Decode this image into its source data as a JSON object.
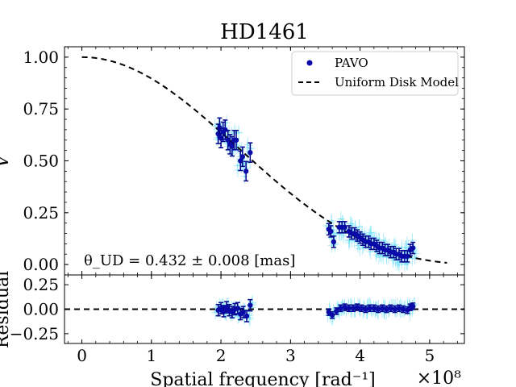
{
  "chart_data": [
    {
      "type": "scatter",
      "title": "HD1461",
      "xlabel": "",
      "ylabel": "V",
      "xlim": [
        -0.25,
        5.5
      ],
      "ylim": [
        -0.05,
        1.05
      ],
      "x_ticks": [
        "0",
        "1",
        "2",
        "3",
        "4",
        "5"
      ],
      "y_ticks": [
        "0.00",
        "0.25",
        "0.50",
        "0.75",
        "1.00"
      ],
      "grid": false,
      "legend_placement": "top-right",
      "legend": [
        "PAVO",
        "Uniform Disk Model"
      ],
      "annotation": "θ_UD = 0.432 ± 0.008 [mas]",
      "series": [
        {
          "name": "PAVO",
          "points": [
            {
              "x": 1.96,
              "y": 0.63
            },
            {
              "x": 1.98,
              "y": 0.66
            },
            {
              "x": 2.0,
              "y": 0.61
            },
            {
              "x": 2.03,
              "y": 0.64
            },
            {
              "x": 2.06,
              "y": 0.65
            },
            {
              "x": 2.1,
              "y": 0.6
            },
            {
              "x": 2.13,
              "y": 0.58
            },
            {
              "x": 2.16,
              "y": 0.57
            },
            {
              "x": 2.19,
              "y": 0.6
            },
            {
              "x": 2.22,
              "y": 0.6
            },
            {
              "x": 2.28,
              "y": 0.5
            },
            {
              "x": 2.31,
              "y": 0.52
            },
            {
              "x": 2.36,
              "y": 0.45
            },
            {
              "x": 2.42,
              "y": 0.54
            },
            {
              "x": 3.55,
              "y": 0.17
            },
            {
              "x": 3.58,
              "y": 0.16
            },
            {
              "x": 3.62,
              "y": 0.11
            },
            {
              "x": 3.7,
              "y": 0.18
            },
            {
              "x": 3.74,
              "y": 0.18
            },
            {
              "x": 3.78,
              "y": 0.18
            },
            {
              "x": 3.84,
              "y": 0.16
            },
            {
              "x": 3.88,
              "y": 0.15
            },
            {
              "x": 3.92,
              "y": 0.15
            },
            {
              "x": 3.96,
              "y": 0.14
            },
            {
              "x": 4.0,
              "y": 0.13
            },
            {
              "x": 4.04,
              "y": 0.12
            },
            {
              "x": 4.08,
              "y": 0.11
            },
            {
              "x": 4.12,
              "y": 0.11
            },
            {
              "x": 4.16,
              "y": 0.1
            },
            {
              "x": 4.2,
              "y": 0.1
            },
            {
              "x": 4.24,
              "y": 0.09
            },
            {
              "x": 4.28,
              "y": 0.08
            },
            {
              "x": 4.32,
              "y": 0.08
            },
            {
              "x": 4.36,
              "y": 0.07
            },
            {
              "x": 4.4,
              "y": 0.07
            },
            {
              "x": 4.44,
              "y": 0.06
            },
            {
              "x": 4.48,
              "y": 0.06
            },
            {
              "x": 4.52,
              "y": 0.05
            },
            {
              "x": 4.56,
              "y": 0.05
            },
            {
              "x": 4.6,
              "y": 0.04
            },
            {
              "x": 4.64,
              "y": 0.04
            },
            {
              "x": 4.68,
              "y": 0.04
            },
            {
              "x": 4.72,
              "y": 0.07
            },
            {
              "x": 4.76,
              "y": 0.08
            }
          ]
        },
        {
          "name": "Uniform Disk Model",
          "model": "uniform_disk",
          "theta_mas": 0.432,
          "x_range": [
            0.0,
            5.25
          ]
        }
      ]
    },
    {
      "type": "scatter",
      "title": "",
      "xlabel": "Spatial frequency [rad⁻¹]",
      "x_scale_label": "×10⁸",
      "ylabel": "Residual",
      "xlim": [
        -0.25,
        5.5
      ],
      "ylim": [
        -0.35,
        0.35
      ],
      "x_ticks": [
        "0",
        "1",
        "2",
        "3",
        "4",
        "5"
      ],
      "y_ticks": [
        "−0.25",
        "0.00",
        "0.25"
      ],
      "reference_line": 0.0,
      "series": [
        {
          "name": "PAVO",
          "points": [
            {
              "x": 1.96,
              "y": -0.01
            },
            {
              "x": 2.0,
              "y": 0.01
            },
            {
              "x": 2.04,
              "y": -0.02
            },
            {
              "x": 2.08,
              "y": 0.02
            },
            {
              "x": 2.12,
              "y": -0.01
            },
            {
              "x": 2.16,
              "y": -0.03
            },
            {
              "x": 2.2,
              "y": 0.0
            },
            {
              "x": 2.24,
              "y": 0.01
            },
            {
              "x": 2.28,
              "y": -0.05
            },
            {
              "x": 2.32,
              "y": -0.03
            },
            {
              "x": 2.37,
              "y": -0.07
            },
            {
              "x": 2.42,
              "y": 0.04
            },
            {
              "x": 3.55,
              "y": -0.03
            },
            {
              "x": 3.6,
              "y": -0.06
            },
            {
              "x": 3.66,
              "y": -0.02
            },
            {
              "x": 3.72,
              "y": 0.01
            },
            {
              "x": 3.78,
              "y": 0.02
            },
            {
              "x": 3.84,
              "y": 0.01
            },
            {
              "x": 3.9,
              "y": 0.01
            },
            {
              "x": 3.96,
              "y": 0.02
            },
            {
              "x": 4.02,
              "y": 0.01
            },
            {
              "x": 4.08,
              "y": 0.0
            },
            {
              "x": 4.14,
              "y": 0.01
            },
            {
              "x": 4.2,
              "y": 0.01
            },
            {
              "x": 4.26,
              "y": 0.0
            },
            {
              "x": 4.32,
              "y": 0.01
            },
            {
              "x": 4.38,
              "y": 0.0
            },
            {
              "x": 4.44,
              "y": 0.01
            },
            {
              "x": 4.5,
              "y": 0.0
            },
            {
              "x": 4.56,
              "y": 0.01
            },
            {
              "x": 4.62,
              "y": 0.0
            },
            {
              "x": 4.68,
              "y": -0.01
            },
            {
              "x": 4.72,
              "y": 0.02
            },
            {
              "x": 4.76,
              "y": 0.03
            }
          ]
        }
      ]
    }
  ],
  "colors": {
    "points": "#0a0aa8",
    "error_bars": "#00008b",
    "raw_errors": "#7fe3f7",
    "model_line": "#000000"
  }
}
